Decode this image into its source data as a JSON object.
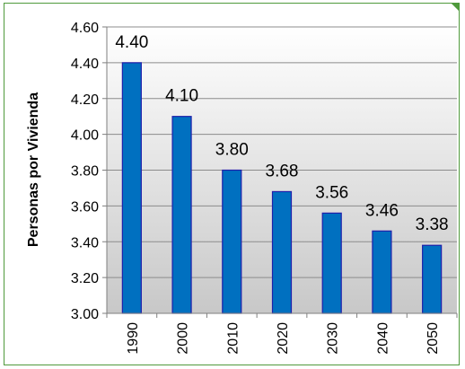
{
  "chart_data": {
    "type": "bar",
    "categories": [
      "1990",
      "2000",
      "2010",
      "2020",
      "2030",
      "2040",
      "2050"
    ],
    "values": [
      4.4,
      4.1,
      3.8,
      3.68,
      3.56,
      3.46,
      3.38
    ],
    "data_labels": [
      "4.40",
      "4.10",
      "3.80",
      "3.68",
      "3.56",
      "3.46",
      "3.38"
    ],
    "title": "",
    "xlabel": "",
    "ylabel": "Personas por Vivienda",
    "ylim": [
      3.0,
      4.6
    ],
    "yticks": [
      3.0,
      3.2,
      3.4,
      3.6,
      3.8,
      4.0,
      4.2,
      4.4,
      4.6
    ],
    "ytick_labels": [
      "3.00",
      "3.20",
      "3.40",
      "3.60",
      "3.80",
      "4.00",
      "4.20",
      "4.40",
      "4.60"
    ],
    "grid": true,
    "legend": "none",
    "colors": {
      "bar_fill": "#0070c0",
      "bar_stroke": "#1f1faa",
      "frame": "#4f9a3c",
      "plot_bg_top": "#ffffff",
      "plot_bg_bottom": "#c8c8c8"
    }
  }
}
